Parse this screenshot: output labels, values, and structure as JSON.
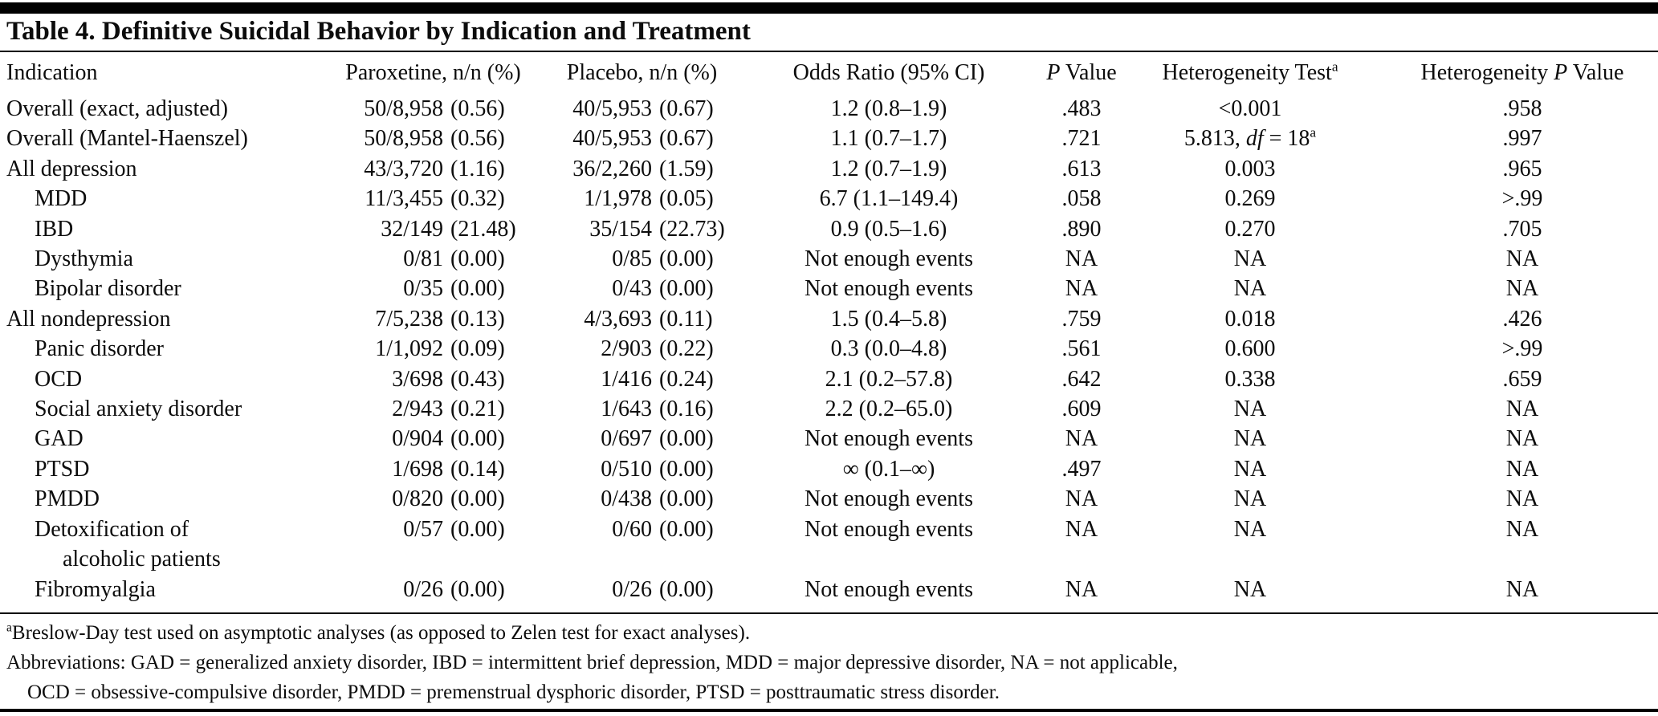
{
  "title": "Table 4. Definitive Suicidal Behavior by Indication and Treatment",
  "columns": [
    "Indication",
    "Paroxetine, n/n (%)",
    "Placebo, n/n (%)",
    "Odds Ratio (95% CI)",
    "*P* Value",
    "Heterogeneity Test^a",
    "Heterogeneity *P* Value"
  ],
  "rows": [
    {
      "name_lines": [
        "Overall (exact, adjusted)"
      ],
      "indent": 0,
      "par_n": "50/8,958",
      "par_pct": "(0.56)",
      "pla_n": "40/5,953",
      "pla_pct": "(0.67)",
      "or": "1.2 (0.8–1.9)",
      "p": ".483",
      "het": "<0.001",
      "hetp": ".958"
    },
    {
      "name_lines": [
        "Overall (Mantel-Haenszel)"
      ],
      "indent": 0,
      "par_n": "50/8,958",
      "par_pct": "(0.56)",
      "pla_n": "40/5,953",
      "pla_pct": "(0.67)",
      "or": "1.1 (0.7–1.7)",
      "p": ".721",
      "het": "5.813, *df* = 18^a",
      "hetp": ".997"
    },
    {
      "name_lines": [
        "All depression"
      ],
      "indent": 0,
      "par_n": "43/3,720",
      "par_pct": "(1.16)",
      "pla_n": "36/2,260",
      "pla_pct": "(1.59)",
      "or": "1.2 (0.7–1.9)",
      "p": ".613",
      "het": "0.003",
      "hetp": ".965"
    },
    {
      "name_lines": [
        "MDD"
      ],
      "indent": 1,
      "par_n": "11/3,455",
      "par_pct": "(0.32)",
      "pla_n": "1/1,978",
      "pla_pct": "(0.05)",
      "or": "6.7 (1.1–149.4)",
      "p": ".058",
      "het": "0.269",
      "hetp": ">.99"
    },
    {
      "name_lines": [
        "IBD"
      ],
      "indent": 1,
      "par_n": "32/149",
      "par_pct": "(21.48)",
      "pla_n": "35/154",
      "pla_pct": "(22.73)",
      "or": "0.9 (0.5–1.6)",
      "p": ".890",
      "het": "0.270",
      "hetp": ".705"
    },
    {
      "name_lines": [
        "Dysthymia"
      ],
      "indent": 1,
      "par_n": "0/81",
      "par_pct": "(0.00)",
      "pla_n": "0/85",
      "pla_pct": "(0.00)",
      "or": "Not enough events",
      "p": "NA",
      "het": "NA",
      "hetp": "NA"
    },
    {
      "name_lines": [
        "Bipolar disorder"
      ],
      "indent": 1,
      "par_n": "0/35",
      "par_pct": "(0.00)",
      "pla_n": "0/43",
      "pla_pct": "(0.00)",
      "or": "Not enough events",
      "p": "NA",
      "het": "NA",
      "hetp": "NA"
    },
    {
      "name_lines": [
        "All nondepression"
      ],
      "indent": 0,
      "par_n": "7/5,238",
      "par_pct": "(0.13)",
      "pla_n": "4/3,693",
      "pla_pct": "(0.11)",
      "or": "1.5 (0.4–5.8)",
      "p": ".759",
      "het": "0.018",
      "hetp": ".426"
    },
    {
      "name_lines": [
        "Panic disorder"
      ],
      "indent": 1,
      "par_n": "1/1,092",
      "par_pct": "(0.09)",
      "pla_n": "2/903",
      "pla_pct": "(0.22)",
      "or": "0.3 (0.0–4.8)",
      "p": ".561",
      "het": "0.600",
      "hetp": ">.99"
    },
    {
      "name_lines": [
        "OCD"
      ],
      "indent": 1,
      "par_n": "3/698",
      "par_pct": "(0.43)",
      "pla_n": "1/416",
      "pla_pct": "(0.24)",
      "or": "2.1 (0.2–57.8)",
      "p": ".642",
      "het": "0.338",
      "hetp": ".659"
    },
    {
      "name_lines": [
        "Social anxiety disorder"
      ],
      "indent": 1,
      "par_n": "2/943",
      "par_pct": "(0.21)",
      "pla_n": "1/643",
      "pla_pct": "(0.16)",
      "or": "2.2 (0.2–65.0)",
      "p": ".609",
      "het": "NA",
      "hetp": "NA"
    },
    {
      "name_lines": [
        "GAD"
      ],
      "indent": 1,
      "par_n": "0/904",
      "par_pct": "(0.00)",
      "pla_n": "0/697",
      "pla_pct": "(0.00)",
      "or": "Not enough events",
      "p": "NA",
      "het": "NA",
      "hetp": "NA"
    },
    {
      "name_lines": [
        "PTSD"
      ],
      "indent": 1,
      "par_n": "1/698",
      "par_pct": "(0.14)",
      "pla_n": "0/510",
      "pla_pct": "(0.00)",
      "or": "∞ (0.1–∞)",
      "p": ".497",
      "het": "NA",
      "hetp": "NA"
    },
    {
      "name_lines": [
        "PMDD"
      ],
      "indent": 1,
      "par_n": "0/820",
      "par_pct": "(0.00)",
      "pla_n": "0/438",
      "pla_pct": "(0.00)",
      "or": "Not enough events",
      "p": "NA",
      "het": "NA",
      "hetp": "NA"
    },
    {
      "name_lines": [
        "Detoxification of",
        "alcoholic patients"
      ],
      "indent": 1,
      "par_n": "0/57",
      "par_pct": "(0.00)",
      "pla_n": "0/60",
      "pla_pct": "(0.00)",
      "or": "Not enough events",
      "p": "NA",
      "het": "NA",
      "hetp": "NA"
    },
    {
      "name_lines": [
        "Fibromyalgia"
      ],
      "indent": 1,
      "par_n": "0/26",
      "par_pct": "(0.00)",
      "pla_n": "0/26",
      "pla_pct": "(0.00)",
      "or": "Not enough events",
      "p": "NA",
      "het": "NA",
      "hetp": "NA"
    }
  ],
  "footnotes": [
    {
      "text": "^aBreslow-Day test used on asymptotic analyses (as opposed to Zelen test for exact analyses).",
      "indent": 0
    },
    {
      "text": "Abbreviations: GAD = generalized anxiety disorder, IBD = intermittent brief depression, MDD = major depressive disorder, NA = not applicable,",
      "indent": 0
    },
    {
      "text": "OCD = obsessive-compulsive disorder, PMDD = premenstrual dysphoric disorder, PTSD = posttraumatic stress disorder.",
      "indent": 1
    }
  ]
}
